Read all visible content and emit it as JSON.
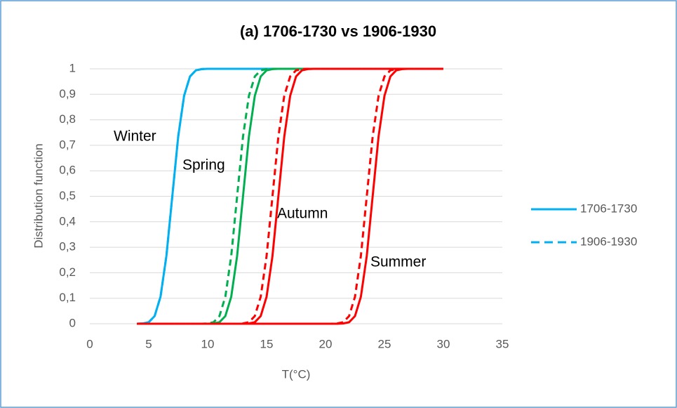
{
  "chart_data": {
    "type": "line",
    "title": "(a) 1706-1730 vs 1906-1930",
    "xlabel": "T(°C)",
    "ylabel": "Distribution function",
    "xlim": [
      0,
      35
    ],
    "xticks": [
      0,
      5,
      10,
      15,
      20,
      25,
      30,
      35
    ],
    "ylim": [
      0,
      1
    ],
    "yticks": [
      0,
      {
        "value": 0.1,
        "label": "0,1"
      },
      {
        "value": 0.2,
        "label": "0,2"
      },
      {
        "value": 0.3,
        "label": "0,3"
      },
      {
        "value": 0.4,
        "label": "0,4"
      },
      {
        "value": 0.5,
        "label": "0,5"
      },
      {
        "value": 0.6,
        "label": "0,6"
      },
      {
        "value": 0.7,
        "label": "0,7"
      },
      {
        "value": 0.8,
        "label": "0,8"
      },
      {
        "value": 0.9,
        "label": "0,9"
      },
      1
    ],
    "grid": true,
    "legend": "right",
    "x": [
      4,
      4.5,
      5,
      5.5,
      6,
      6.5,
      7,
      7.5,
      8,
      8.5,
      9,
      9.5,
      10,
      10.5,
      11,
      11.5,
      12,
      12.5,
      13,
      13.5,
      14,
      14.5,
      15,
      15.5,
      16,
      16.5,
      17,
      17.5,
      18,
      18.5,
      19,
      19.5,
      20,
      20.5,
      21,
      21.5,
      22,
      22.5,
      23,
      23.5,
      24,
      24.5,
      25,
      25.5,
      26,
      26.5,
      27,
      27.5,
      28,
      28.5,
      29,
      29.5,
      30
    ],
    "series": [
      {
        "name": "1706-1730",
        "dashed": false,
        "curves": [
          {
            "color": "#00b0f0",
            "values": [
              0,
              0.001,
              0.006,
              0.03,
              0.106,
              0.266,
              0.5,
              0.734,
              0.894,
              0.97,
              0.994,
              0.999,
              1,
              1,
              1,
              1,
              1,
              1,
              1,
              1,
              1,
              1,
              1,
              1,
              1,
              1,
              1,
              1,
              1,
              1,
              1,
              1,
              1,
              1,
              1,
              1,
              1,
              1,
              1,
              1,
              1,
              1,
              1,
              1,
              1,
              1,
              1,
              1,
              1,
              1,
              1,
              1,
              1
            ]
          },
          {
            "color": "#00b050",
            "values": [
              0,
              0,
              0,
              0,
              0,
              0,
              0,
              0,
              0,
              0,
              0,
              0,
              0,
              0.001,
              0.006,
              0.03,
              0.106,
              0.266,
              0.5,
              0.734,
              0.894,
              0.97,
              0.994,
              0.999,
              1,
              1,
              1,
              1,
              1,
              1,
              1,
              1,
              1,
              1,
              1,
              1,
              1,
              1,
              1,
              1,
              1,
              1,
              1,
              1,
              1,
              1,
              1,
              1,
              1,
              1,
              1,
              1,
              1
            ]
          },
          {
            "color": "#ff0000",
            "values": [
              0,
              0,
              0,
              0,
              0,
              0,
              0,
              0,
              0,
              0,
              0,
              0,
              0,
              0,
              0,
              0,
              0,
              0,
              0,
              0.001,
              0.006,
              0.03,
              0.106,
              0.266,
              0.5,
              0.734,
              0.894,
              0.97,
              0.994,
              0.999,
              1,
              1,
              1,
              1,
              1,
              1,
              1,
              1,
              1,
              1,
              1,
              1,
              1,
              1,
              1,
              1,
              1,
              1,
              1,
              1,
              1,
              1,
              1
            ]
          },
          {
            "color": "#ff0000",
            "values": [
              0,
              0,
              0,
              0,
              0,
              0,
              0,
              0,
              0,
              0,
              0,
              0,
              0,
              0,
              0,
              0,
              0,
              0,
              0,
              0,
              0,
              0,
              0,
              0,
              0,
              0,
              0,
              0,
              0,
              0,
              0,
              0,
              0,
              0,
              0,
              0.001,
              0.006,
              0.03,
              0.106,
              0.266,
              0.5,
              0.734,
              0.894,
              0.97,
              0.994,
              0.999,
              1,
              1,
              1,
              1,
              1,
              1,
              1
            ]
          }
        ]
      },
      {
        "name": "1906-1930",
        "dashed": true,
        "curves": [
          {
            "color": "#00b0f0",
            "values": [
              0,
              0.001,
              0.006,
              0.03,
              0.106,
              0.266,
              0.5,
              0.734,
              0.894,
              0.97,
              0.994,
              0.999,
              1,
              1,
              1,
              1,
              1,
              1,
              1,
              1,
              1,
              1,
              1,
              1,
              1,
              1,
              1,
              1,
              1,
              1,
              1,
              1,
              1,
              1,
              1,
              1,
              1,
              1,
              1,
              1,
              1,
              1,
              1,
              1,
              1,
              1,
              1,
              1,
              1,
              1,
              1,
              1,
              1
            ]
          },
          {
            "color": "#00b050",
            "values": [
              0,
              0,
              0,
              0,
              0,
              0,
              0,
              0,
              0,
              0,
              0,
              0,
              0.001,
              0.006,
              0.03,
              0.106,
              0.266,
              0.5,
              0.734,
              0.894,
              0.97,
              0.994,
              0.999,
              1,
              1,
              1,
              1,
              1,
              1,
              1,
              1,
              1,
              1,
              1,
              1,
              1,
              1,
              1,
              1,
              1,
              1,
              1,
              1,
              1,
              1,
              1,
              1,
              1,
              1,
              1,
              1,
              1,
              1
            ]
          },
          {
            "color": "#ff0000",
            "values": [
              0,
              0,
              0,
              0,
              0,
              0,
              0,
              0,
              0,
              0,
              0,
              0,
              0,
              0,
              0,
              0,
              0,
              0,
              0.001,
              0.006,
              0.03,
              0.106,
              0.266,
              0.5,
              0.734,
              0.894,
              0.97,
              0.994,
              0.999,
              1,
              1,
              1,
              1,
              1,
              1,
              1,
              1,
              1,
              1,
              1,
              1,
              1,
              1,
              1,
              1,
              1,
              1,
              1,
              1,
              1,
              1,
              1,
              1
            ]
          },
          {
            "color": "#ff0000",
            "values": [
              0,
              0,
              0,
              0,
              0,
              0,
              0,
              0,
              0,
              0,
              0,
              0,
              0,
              0,
              0,
              0,
              0,
              0,
              0,
              0,
              0,
              0,
              0,
              0,
              0,
              0,
              0,
              0,
              0,
              0,
              0,
              0,
              0,
              0,
              0.001,
              0.006,
              0.03,
              0.106,
              0.266,
              0.5,
              0.734,
              0.894,
              0.97,
              0.994,
              0.999,
              1,
              1,
              1,
              1,
              1,
              1,
              1,
              1
            ]
          }
        ]
      }
    ],
    "legend_color": "#00b0f0",
    "annotations": [
      "Winter",
      "Spring",
      "Autumn",
      "Summer"
    ]
  }
}
